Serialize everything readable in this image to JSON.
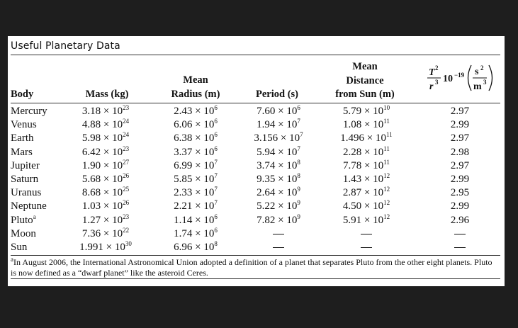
{
  "title": "Useful Planetary Data",
  "headers": {
    "body": "Body",
    "mass": "Mass (kg)",
    "radius_line1": "Mean",
    "radius_line2": "Radius (m)",
    "period": "Period (s)",
    "dist_line1": "Mean",
    "dist_line2": "Distance",
    "dist_line3": "from Sun (m)",
    "ratio_num": "T",
    "ratio_num_exp": "2",
    "ratio_den": "r",
    "ratio_den_exp": "3",
    "ratio_mult": "10",
    "ratio_mult_exp": "−19",
    "ratio_unit_num": "s",
    "ratio_unit_num_exp": "2",
    "ratio_unit_den": "m",
    "ratio_unit_den_exp": "3"
  },
  "rows": [
    {
      "name": "Mercury",
      "mass_m": "3.18 × 10",
      "mass_e": "23",
      "rad_m": "2.43 × 10",
      "rad_e": "6",
      "per_m": "7.60 × 10",
      "per_e": "6",
      "dist_m": "5.79 × 10",
      "dist_e": "10",
      "ratio": "2.97"
    },
    {
      "name": "Venus",
      "mass_m": "4.88 × 10",
      "mass_e": "24",
      "rad_m": "6.06 × 10",
      "rad_e": "6",
      "per_m": "1.94 × 10",
      "per_e": "7",
      "dist_m": "1.08 × 10",
      "dist_e": "11",
      "ratio": "2.99"
    },
    {
      "name": "Earth",
      "mass_m": "5.98 × 10",
      "mass_e": "24",
      "rad_m": "6.38 × 10",
      "rad_e": "6",
      "per_m": "3.156 × 10",
      "per_e": "7",
      "dist_m": "1.496 × 10",
      "dist_e": "11",
      "ratio": "2.97"
    },
    {
      "name": "Mars",
      "mass_m": "6.42 × 10",
      "mass_e": "23",
      "rad_m": "3.37 × 10",
      "rad_e": "6",
      "per_m": "5.94 × 10",
      "per_e": "7",
      "dist_m": "2.28 × 10",
      "dist_e": "11",
      "ratio": "2.98"
    },
    {
      "name": "Jupiter",
      "mass_m": "1.90 × 10",
      "mass_e": "27",
      "rad_m": "6.99 × 10",
      "rad_e": "7",
      "per_m": "3.74 × 10",
      "per_e": "8",
      "dist_m": "7.78 × 10",
      "dist_e": "11",
      "ratio": "2.97"
    },
    {
      "name": "Saturn",
      "mass_m": "5.68 × 10",
      "mass_e": "26",
      "rad_m": "5.85 × 10",
      "rad_e": "7",
      "per_m": "9.35 × 10",
      "per_e": "8",
      "dist_m": "1.43 × 10",
      "dist_e": "12",
      "ratio": "2.99"
    },
    {
      "name": "Uranus",
      "mass_m": "8.68 × 10",
      "mass_e": "25",
      "rad_m": "2.33 × 10",
      "rad_e": "7",
      "per_m": "2.64 × 10",
      "per_e": "9",
      "dist_m": "2.87 × 10",
      "dist_e": "12",
      "ratio": "2.95"
    },
    {
      "name": "Neptune",
      "mass_m": "1.03 × 10",
      "mass_e": "26",
      "rad_m": "2.21 × 10",
      "rad_e": "7",
      "per_m": "5.22 × 10",
      "per_e": "9",
      "dist_m": "4.50 × 10",
      "dist_e": "12",
      "ratio": "2.99"
    },
    {
      "name": "Pluto",
      "name_sup": "a",
      "mass_m": "1.27 × 10",
      "mass_e": "23",
      "rad_m": "1.14 × 10",
      "rad_e": "6",
      "per_m": "7.82 × 10",
      "per_e": "9",
      "dist_m": "5.91 × 10",
      "dist_e": "12",
      "ratio": "2.96"
    },
    {
      "name": "Moon",
      "mass_m": "7.36 × 10",
      "mass_e": "22",
      "rad_m": "1.74 × 10",
      "rad_e": "6",
      "per_m": "",
      "per_e": "",
      "dist_m": "",
      "dist_e": "",
      "ratio": ""
    },
    {
      "name": "Sun",
      "mass_m": "1.991 × 10",
      "mass_e": "30",
      "rad_m": "6.96 × 10",
      "rad_e": "8",
      "per_m": "",
      "per_e": "",
      "dist_m": "",
      "dist_e": "",
      "ratio": ""
    }
  ],
  "footnote_marker": "a",
  "footnote": "In August 2006, the International Astronomical Union adopted a definition of a planet that separates Pluto from the other eight planets. Pluto is now defined as a “dwarf planet” like the asteroid Ceres."
}
